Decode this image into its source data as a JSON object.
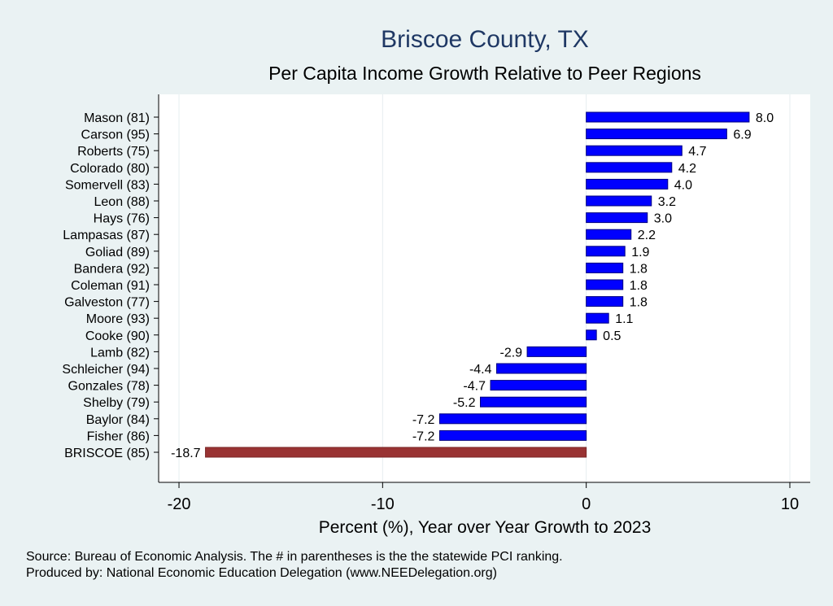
{
  "chart_data": {
    "type": "bar",
    "orientation": "horizontal",
    "title": "Briscoe County, TX",
    "subtitle": "Per Capita Income Growth Relative to Peer Regions",
    "xlabel": "Percent (%), Year over Year Growth to 2023",
    "xlim": [
      -21,
      11
    ],
    "xticks": [
      -20,
      -10,
      0,
      10
    ],
    "grid": true,
    "categories": [
      "Mason (81)",
      "Carson (95)",
      "Roberts (75)",
      "Colorado (80)",
      "Somervell (83)",
      "Leon (88)",
      "Hays (76)",
      "Lampasas (87)",
      "Goliad (89)",
      "Bandera (92)",
      "Coleman (91)",
      "Galveston (77)",
      "Moore (93)",
      "Cooke (90)",
      "Lamb (82)",
      "Schleicher (94)",
      "Gonzales (78)",
      "Shelby (79)",
      "Baylor (84)",
      "Fisher (86)",
      "BRISCOE (85)"
    ],
    "values": [
      8.0,
      6.9,
      4.7,
      4.2,
      4.0,
      3.2,
      3.0,
      2.2,
      1.9,
      1.8,
      1.8,
      1.8,
      1.1,
      0.5,
      -2.9,
      -4.4,
      -4.7,
      -5.2,
      -7.2,
      -7.2,
      -18.7
    ],
    "value_labels": [
      "8.0",
      "6.9",
      "4.7",
      "4.2",
      "4.0",
      "3.2",
      "3.0",
      "2.2",
      "1.9",
      "1.8",
      "1.8",
      "1.8",
      "1.1",
      "0.5",
      "-2.9",
      "-4.4",
      "-4.7",
      "-5.2",
      "-7.2",
      "-7.2",
      "-18.7"
    ],
    "highlight_category": "BRISCOE (85)",
    "bar_color": "#0000ff",
    "highlight_color": "#993333",
    "notes": [
      "Source: Bureau of Economic Analysis. The # in parentheses is the the statewide PCI ranking.",
      "Produced by: National Economic Education Delegation (www.NEEDelegation.org)"
    ]
  },
  "colors": {
    "background": "#eaf2f3",
    "plot_background": "#ffffff",
    "title": "#1f3864",
    "grid": "#e6eef0"
  }
}
